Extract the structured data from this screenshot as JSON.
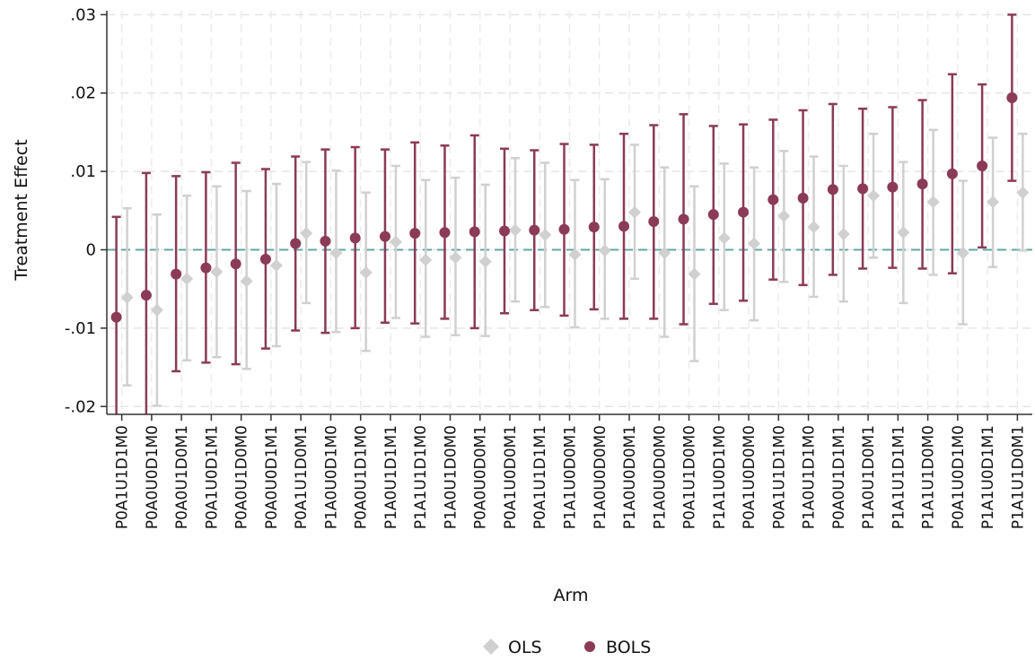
{
  "chart_data": {
    "type": "scatter",
    "title": "",
    "xlabel": "Arm",
    "ylabel": "Treatment Effect",
    "ylim": [
      -0.021,
      0.0305
    ],
    "yticks": [
      -0.02,
      -0.01,
      0,
      0.01,
      0.02,
      0.03
    ],
    "ytick_labels": [
      "-.02",
      "-.01",
      "0",
      ".01",
      ".02",
      ".03"
    ],
    "grid": true,
    "reference_line": 0,
    "reference_line_color": "#5fa8a3",
    "legend_position": "bottom",
    "categories": [
      "P0A1U1D1M0",
      "P0A0U0D1M0",
      "P0A0U1D0M1",
      "P0A1U0D1M1",
      "P0A0U1D0M0",
      "P0A0U0D1M1",
      "P0A1U1D0M1",
      "P1A0U0D1M0",
      "P0A0U1D1M0",
      "P1A0U1D1M1",
      "P1A1U1D1M0",
      "P1A0U1D0M0",
      "P0A0U0D0M1",
      "P0A1U0D0M1",
      "P0A1U1D1M1",
      "P1A1U0D0M1",
      "P1A0U0D0M0",
      "P1A0U0D0M1",
      "P1A0U0D0M0",
      "P0A1U1D0M0",
      "P1A1U0D1M0",
      "P0A1U0D0M0",
      "P0A1U1D1M0",
      "P1A0U1D1M0",
      "P0A0U1D1M1",
      "P1A0U1D0M1",
      "P1A1U1D1M1",
      "P1A1U1D0M0",
      "P0A1U0D1M0",
      "P1A1U0D1M1",
      "P1A1U1D0M1"
    ],
    "series": [
      {
        "name": "OLS",
        "color": "#d0d0d0",
        "marker": "diamond",
        "estimates": [
          -0.0061,
          -0.0077,
          -0.0037,
          -0.0028,
          -0.004,
          -0.002,
          0.0021,
          -0.0004,
          -0.0029,
          0.001,
          -0.0013,
          -0.001,
          -0.0015,
          0.0025,
          0.0019,
          -0.0006,
          -0.0001,
          0.0048,
          -0.0004,
          -0.0031,
          0.0015,
          0.0008,
          0.0043,
          0.0029,
          0.002,
          0.0069,
          0.0022,
          0.0061,
          -0.0004,
          0.0061,
          0.0073
        ],
        "ci_low": [
          -0.0173,
          -0.0199,
          -0.0141,
          -0.0137,
          -0.0152,
          -0.0123,
          -0.0068,
          -0.0105,
          -0.0129,
          -0.0087,
          -0.0111,
          -0.0109,
          -0.011,
          -0.0066,
          -0.0073,
          -0.0099,
          -0.0088,
          -0.0037,
          -0.0111,
          -0.0142,
          -0.0077,
          -0.009,
          -0.0041,
          -0.006,
          -0.0066,
          -0.001,
          -0.0068,
          -0.0032,
          -0.0095,
          -0.0022,
          -0.0001
        ],
        "ci_high": [
          0.0053,
          0.0045,
          0.0069,
          0.0081,
          0.0075,
          0.0084,
          0.0112,
          0.0101,
          0.0073,
          0.0107,
          0.0089,
          0.0092,
          0.0083,
          0.0117,
          0.0111,
          0.0089,
          0.009,
          0.0134,
          0.0105,
          0.0081,
          0.011,
          0.0105,
          0.0126,
          0.0119,
          0.0107,
          0.0148,
          0.0112,
          0.0153,
          0.0088,
          0.0143,
          0.0148
        ]
      },
      {
        "name": "BOLS",
        "color": "#8b3a58",
        "marker": "circle",
        "estimates": [
          -0.0086,
          -0.0058,
          -0.0031,
          -0.0023,
          -0.0018,
          -0.0012,
          0.0008,
          0.0011,
          0.0015,
          0.0017,
          0.0021,
          0.0022,
          0.0023,
          0.0024,
          0.0025,
          0.0026,
          0.0029,
          0.003,
          0.0036,
          0.0039,
          0.0045,
          0.0048,
          0.0064,
          0.0066,
          0.0077,
          0.0078,
          0.008,
          0.0084,
          0.0097,
          0.0107,
          0.0194
        ],
        "ci_low": [
          -0.0215,
          -0.0215,
          -0.0155,
          -0.0144,
          -0.0146,
          -0.0126,
          -0.0103,
          -0.0106,
          -0.01,
          -0.0093,
          -0.0094,
          -0.0088,
          -0.01,
          -0.0081,
          -0.0077,
          -0.0084,
          -0.0076,
          -0.0088,
          -0.0088,
          -0.0095,
          -0.0069,
          -0.0065,
          -0.0038,
          -0.0045,
          -0.0032,
          -0.0024,
          -0.0023,
          -0.0024,
          -0.003,
          0.0003,
          0.0088
        ],
        "ci_high": [
          0.0042,
          0.0098,
          0.0094,
          0.0099,
          0.0111,
          0.0103,
          0.0119,
          0.0128,
          0.0131,
          0.0128,
          0.0137,
          0.0133,
          0.0146,
          0.0129,
          0.0127,
          0.0135,
          0.0134,
          0.0148,
          0.0159,
          0.0173,
          0.0158,
          0.016,
          0.0166,
          0.0178,
          0.0186,
          0.018,
          0.0182,
          0.0191,
          0.0224,
          0.0211,
          0.03
        ]
      }
    ]
  }
}
